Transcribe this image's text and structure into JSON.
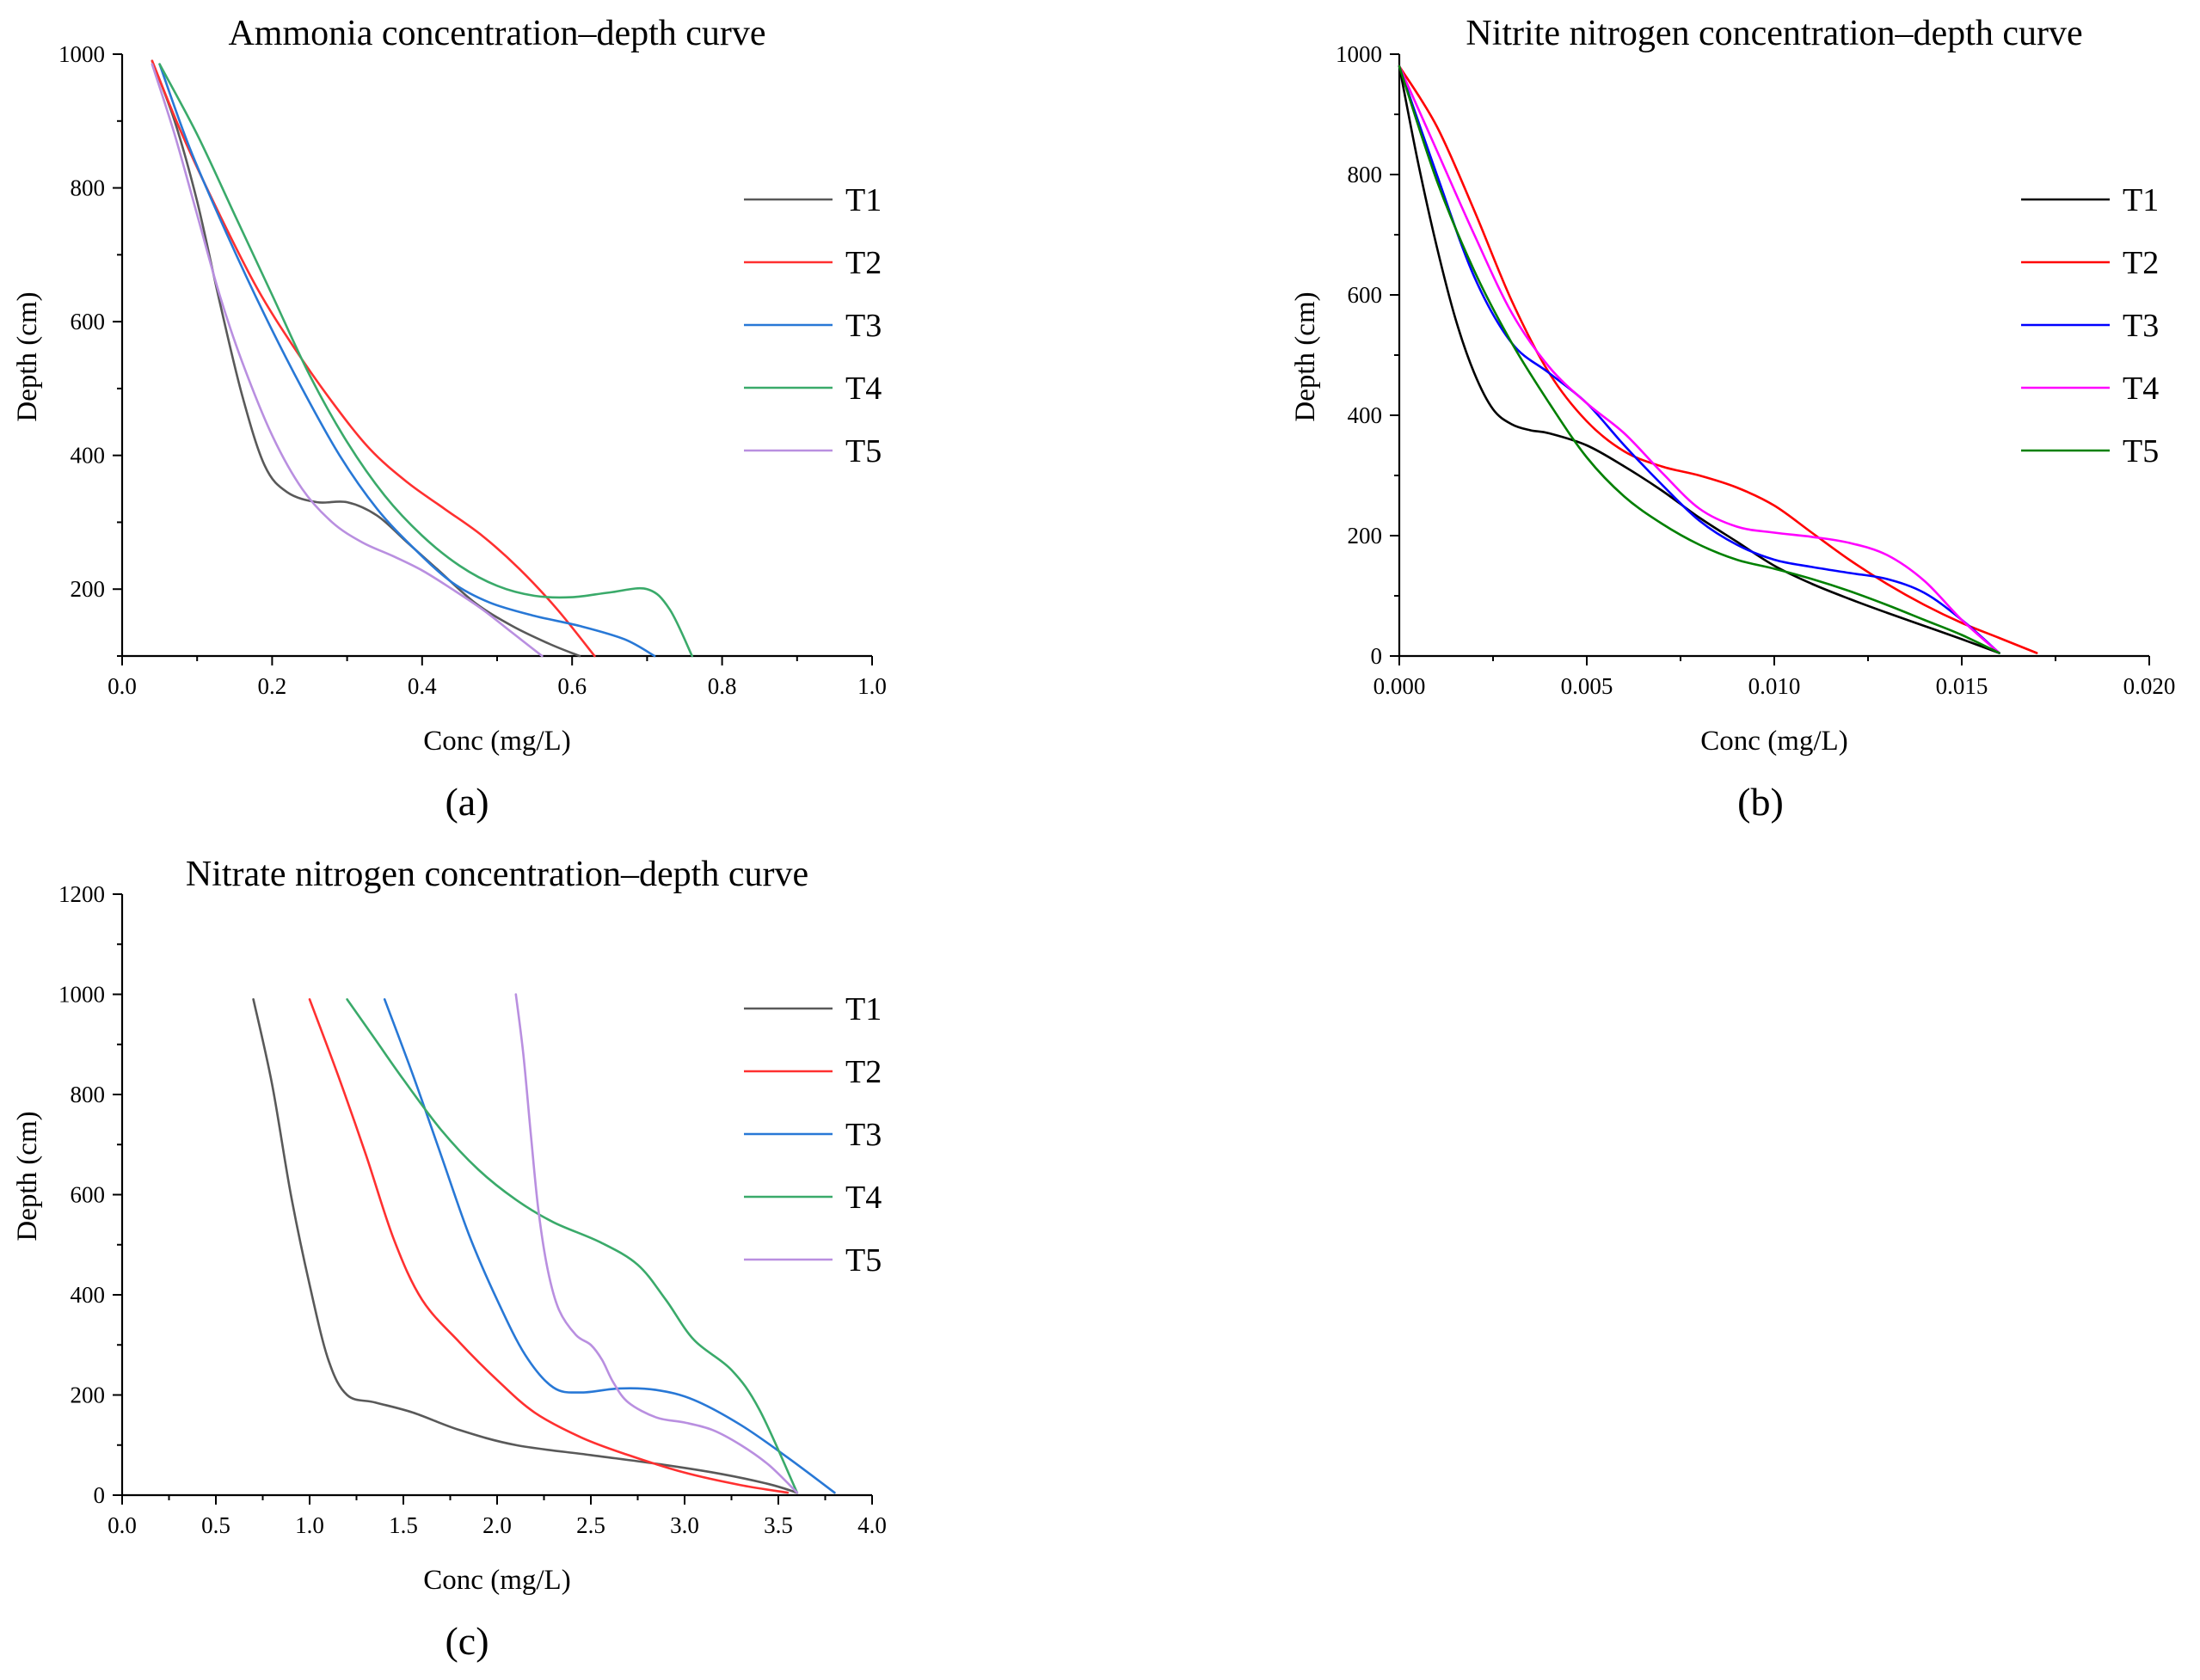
{
  "chart_data": [
    {
      "type": "line",
      "panel_label": "(a)",
      "title": "Ammonia concentration–depth curve",
      "xlabel": "Conc (mg/L)",
      "ylabel": "Depth (cm)",
      "xlim": [
        0.0,
        1.0
      ],
      "ylim": [
        100,
        1000
      ],
      "xticks": [
        0.0,
        0.2,
        0.4,
        0.6,
        0.8,
        1.0
      ],
      "xtick_labels": [
        "0.0",
        "0.2",
        "0.4",
        "0.6",
        "0.8",
        "1.0"
      ],
      "yticks": [
        200,
        400,
        600,
        800,
        1000
      ],
      "ytick_labels": [
        "200",
        "400",
        "600",
        "800",
        "1000"
      ],
      "legend_position": "right",
      "series": [
        {
          "name": "T1",
          "color": "#595959",
          "x": [
            0.04,
            0.07,
            0.1,
            0.13,
            0.16,
            0.19,
            0.22,
            0.26,
            0.3,
            0.34,
            0.38,
            0.42,
            0.47,
            0.52,
            0.57,
            0.61
          ],
          "y": [
            990,
            900,
            780,
            630,
            490,
            385,
            345,
            330,
            330,
            310,
            270,
            230,
            180,
            145,
            118,
            100
          ]
        },
        {
          "name": "T2",
          "color": "#ff3030",
          "x": [
            0.04,
            0.08,
            0.13,
            0.18,
            0.23,
            0.28,
            0.33,
            0.38,
            0.43,
            0.48,
            0.53,
            0.58,
            0.63
          ],
          "y": [
            990,
            880,
            760,
            650,
            560,
            480,
            410,
            360,
            320,
            280,
            230,
            170,
            100
          ]
        },
        {
          "name": "T3",
          "color": "#2878d6",
          "x": [
            0.05,
            0.09,
            0.14,
            0.19,
            0.24,
            0.29,
            0.34,
            0.39,
            0.44,
            0.49,
            0.55,
            0.61,
            0.67,
            0.71
          ],
          "y": [
            985,
            860,
            730,
            610,
            500,
            400,
            320,
            260,
            210,
            180,
            160,
            145,
            125,
            100
          ]
        },
        {
          "name": "T4",
          "color": "#3aaa6a",
          "x": [
            0.05,
            0.1,
            0.15,
            0.2,
            0.25,
            0.3,
            0.35,
            0.4,
            0.45,
            0.5,
            0.55,
            0.6,
            0.65,
            0.7,
            0.73,
            0.76
          ],
          "y": [
            985,
            880,
            760,
            640,
            520,
            420,
            340,
            280,
            235,
            205,
            190,
            188,
            195,
            200,
            170,
            100
          ]
        },
        {
          "name": "T5",
          "color": "#b98fe0",
          "x": [
            0.04,
            0.07,
            0.1,
            0.13,
            0.16,
            0.2,
            0.24,
            0.28,
            0.32,
            0.36,
            0.4,
            0.44,
            0.48,
            0.52,
            0.56
          ],
          "y": [
            985,
            880,
            760,
            640,
            540,
            430,
            350,
            300,
            270,
            250,
            228,
            200,
            170,
            135,
            100
          ]
        }
      ]
    },
    {
      "type": "line",
      "panel_label": "(b)",
      "title": "Nitrite nitrogen concentration–depth curve",
      "xlabel": "Conc (mg/L)",
      "ylabel": "Depth (cm)",
      "xlim": [
        0.0,
        0.02
      ],
      "ylim": [
        0,
        1000
      ],
      "xticks": [
        0.0,
        0.005,
        0.01,
        0.015,
        0.02
      ],
      "xtick_labels": [
        "0.000",
        "0.005",
        "0.010",
        "0.015",
        "0.020"
      ],
      "yticks": [
        0,
        200,
        400,
        600,
        800,
        1000
      ],
      "ytick_labels": [
        "0",
        "200",
        "400",
        "600",
        "800",
        "1000"
      ],
      "legend_position": "right",
      "series": [
        {
          "name": "T1",
          "color": "#000000",
          "x": [
            0.0,
            0.0005,
            0.001,
            0.0015,
            0.002,
            0.0025,
            0.003,
            0.0035,
            0.004,
            0.005,
            0.006,
            0.007,
            0.008,
            0.009,
            0.01,
            0.011,
            0.012,
            0.013,
            0.014,
            0.015,
            0.016
          ],
          "y": [
            980,
            820,
            680,
            560,
            470,
            410,
            385,
            375,
            370,
            350,
            315,
            275,
            230,
            190,
            150,
            120,
            95,
            72,
            50,
            28,
            5
          ]
        },
        {
          "name": "T2",
          "color": "#ff0000",
          "x": [
            0.0,
            0.001,
            0.002,
            0.003,
            0.004,
            0.005,
            0.006,
            0.007,
            0.008,
            0.009,
            0.01,
            0.011,
            0.012,
            0.013,
            0.014,
            0.015,
            0.016,
            0.017
          ],
          "y": [
            980,
            880,
            740,
            590,
            470,
            390,
            340,
            315,
            300,
            280,
            250,
            205,
            160,
            120,
            85,
            55,
            30,
            5
          ]
        },
        {
          "name": "T3",
          "color": "#0000ff",
          "x": [
            0.0,
            0.001,
            0.002,
            0.003,
            0.004,
            0.005,
            0.006,
            0.007,
            0.008,
            0.009,
            0.01,
            0.011,
            0.012,
            0.013,
            0.014,
            0.015,
            0.016
          ],
          "y": [
            980,
            800,
            630,
            520,
            470,
            420,
            350,
            285,
            225,
            185,
            160,
            148,
            138,
            128,
            105,
            60,
            5
          ]
        },
        {
          "name": "T4",
          "color": "#ff00ff",
          "x": [
            0.0,
            0.001,
            0.002,
            0.003,
            0.004,
            0.005,
            0.006,
            0.007,
            0.008,
            0.009,
            0.01,
            0.011,
            0.012,
            0.013,
            0.014,
            0.015,
            0.016
          ],
          "y": [
            980,
            840,
            700,
            570,
            480,
            420,
            370,
            305,
            245,
            215,
            205,
            198,
            188,
            168,
            125,
            60,
            5
          ]
        },
        {
          "name": "T5",
          "color": "#008000",
          "x": [
            0.0,
            0.001,
            0.002,
            0.003,
            0.004,
            0.005,
            0.006,
            0.007,
            0.008,
            0.009,
            0.01,
            0.011,
            0.012,
            0.013,
            0.014,
            0.015,
            0.016
          ],
          "y": [
            980,
            790,
            640,
            520,
            420,
            330,
            265,
            220,
            185,
            160,
            145,
            128,
            108,
            85,
            60,
            35,
            5
          ]
        }
      ]
    },
    {
      "type": "line",
      "panel_label": "(c)",
      "title": "Nitrate nitrogen concentration–depth curve",
      "xlabel": "Conc (mg/L)",
      "ylabel": "Depth (cm)",
      "xlim": [
        0.0,
        4.0
      ],
      "ylim": [
        0,
        1200
      ],
      "xticks": [
        0.0,
        0.5,
        1.0,
        1.5,
        2.0,
        2.5,
        3.0,
        3.5,
        4.0
      ],
      "xtick_labels": [
        "0.0",
        "0.5",
        "1.0",
        "1.5",
        "2.0",
        "2.5",
        "3.0",
        "3.5",
        "4.0"
      ],
      "yticks": [
        0,
        200,
        400,
        600,
        800,
        1000,
        1200
      ],
      "ytick_labels": [
        "0",
        "200",
        "400",
        "600",
        "800",
        "1000",
        "1200"
      ],
      "legend_position": "right",
      "series": [
        {
          "name": "T1",
          "color": "#595959",
          "x": [
            0.7,
            0.8,
            0.9,
            1.0,
            1.1,
            1.2,
            1.35,
            1.55,
            1.8,
            2.1,
            2.5,
            2.9,
            3.2,
            3.45,
            3.6
          ],
          "y": [
            990,
            820,
            600,
            420,
            270,
            200,
            185,
            165,
            130,
            100,
            80,
            60,
            42,
            22,
            5
          ]
        },
        {
          "name": "T2",
          "color": "#ff3030",
          "x": [
            1.0,
            1.15,
            1.3,
            1.45,
            1.6,
            1.8,
            2.0,
            2.2,
            2.45,
            2.7,
            3.0,
            3.3,
            3.55
          ],
          "y": [
            990,
            840,
            680,
            510,
            390,
            305,
            230,
            165,
            115,
            80,
            45,
            20,
            5
          ]
        },
        {
          "name": "T3",
          "color": "#2878d6",
          "x": [
            1.4,
            1.55,
            1.7,
            1.85,
            2.0,
            2.15,
            2.3,
            2.45,
            2.65,
            2.85,
            3.05,
            3.3,
            3.55,
            3.8
          ],
          "y": [
            990,
            840,
            680,
            520,
            390,
            280,
            215,
            205,
            213,
            210,
            190,
            140,
            75,
            5
          ]
        },
        {
          "name": "T4",
          "color": "#3aaa6a",
          "x": [
            1.2,
            1.35,
            1.5,
            1.7,
            1.9,
            2.1,
            2.3,
            2.55,
            2.75,
            2.9,
            3.05,
            3.25,
            3.4,
            3.6
          ],
          "y": [
            990,
            910,
            830,
            730,
            650,
            590,
            545,
            505,
            460,
            390,
            310,
            250,
            170,
            5
          ]
        },
        {
          "name": "T5",
          "color": "#b98fe0",
          "x": [
            2.1,
            2.14,
            2.18,
            2.22,
            2.27,
            2.33,
            2.42,
            2.5,
            2.56,
            2.62,
            2.7,
            2.85,
            3.0,
            3.15,
            3.3,
            3.45,
            3.6
          ],
          "y": [
            1000,
            880,
            720,
            570,
            450,
            370,
            320,
            300,
            270,
            225,
            185,
            155,
            145,
            130,
            100,
            60,
            5
          ]
        }
      ]
    }
  ]
}
